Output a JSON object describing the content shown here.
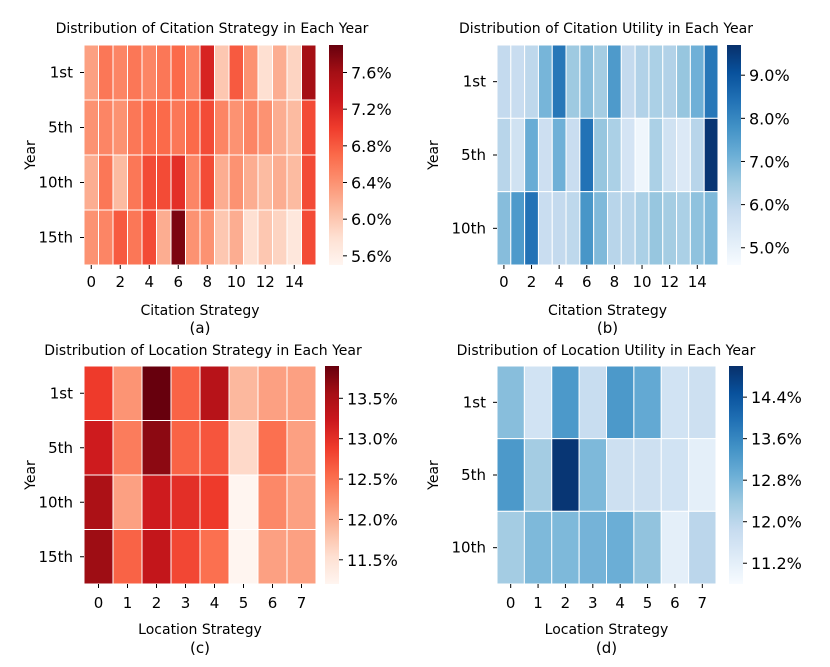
{
  "chart_data": [
    {
      "type": "heatmap",
      "title": "Distribution of Citation Strategy in Each Year",
      "xlabel": "Citation Strategy",
      "ylabel": "Year",
      "caption": "(a)",
      "colormap": "reds",
      "rows": [
        "1st",
        "5th",
        "10th",
        "15th"
      ],
      "x_tick_labels": [
        "0",
        "2",
        "4",
        "6",
        "8",
        "10",
        "12",
        "14"
      ],
      "vmin": 5.5,
      "vmax": 7.9,
      "colorbar_ticks": [
        {
          "value": 7.6,
          "label": "7.6%"
        },
        {
          "value": 7.2,
          "label": "7.2%"
        },
        {
          "value": 6.8,
          "label": "6.8%"
        },
        {
          "value": 6.4,
          "label": "6.4%"
        },
        {
          "value": 6.0,
          "label": "6.0%"
        },
        {
          "value": 5.6,
          "label": "5.6%"
        }
      ],
      "values": [
        [
          6.3,
          6.6,
          6.5,
          6.6,
          6.5,
          6.6,
          6.7,
          6.5,
          7.2,
          6.0,
          6.8,
          6.4,
          5.8,
          6.2,
          5.9,
          7.6
        ],
        [
          6.4,
          6.5,
          6.4,
          6.6,
          6.7,
          6.7,
          6.6,
          6.7,
          6.9,
          6.5,
          6.4,
          6.5,
          6.4,
          6.2,
          6.1,
          6.9
        ],
        [
          6.2,
          6.6,
          6.1,
          6.6,
          6.9,
          6.9,
          7.1,
          6.5,
          6.9,
          6.2,
          6.4,
          6.2,
          6.1,
          6.2,
          6.1,
          6.9
        ],
        [
          6.4,
          6.5,
          6.8,
          6.6,
          6.9,
          6.2,
          7.8,
          6.4,
          6.4,
          6.0,
          6.2,
          5.8,
          6.0,
          5.9,
          5.7,
          6.9
        ]
      ]
    },
    {
      "type": "heatmap",
      "title": "Distribution of Citation Utility in Each Year",
      "xlabel": "Citation Strategy",
      "ylabel": "Year",
      "caption": "(b)",
      "colormap": "blues",
      "rows": [
        "1st",
        "5th",
        "10th"
      ],
      "x_tick_labels": [
        "0",
        "2",
        "4",
        "6",
        "8",
        "10",
        "12",
        "14"
      ],
      "vmin": 4.6,
      "vmax": 9.7,
      "colorbar_ticks": [
        {
          "value": 9.0,
          "label": "9.0%"
        },
        {
          "value": 8.0,
          "label": "8.0%"
        },
        {
          "value": 7.0,
          "label": "7.0%"
        },
        {
          "value": 6.0,
          "label": "6.0%"
        },
        {
          "value": 5.0,
          "label": "5.0%"
        }
      ],
      "values": [
        [
          5.9,
          5.8,
          6.0,
          7.0,
          8.3,
          6.5,
          6.8,
          6.4,
          7.6,
          5.9,
          6.2,
          6.3,
          6.2,
          6.6,
          7.1,
          8.3
        ],
        [
          6.1,
          5.6,
          7.2,
          5.7,
          7.1,
          5.8,
          8.4,
          6.6,
          6.3,
          5.5,
          4.8,
          6.3,
          5.6,
          5.3,
          6.1,
          9.6
        ],
        [
          6.8,
          7.6,
          8.4,
          5.8,
          5.9,
          6.0,
          7.7,
          6.9,
          6.1,
          6.1,
          6.3,
          6.6,
          6.4,
          6.3,
          6.7,
          6.9
        ]
      ]
    },
    {
      "type": "heatmap",
      "title": "Distribution of Location Strategy in Each Year",
      "xlabel": "Location Strategy",
      "ylabel": "Year",
      "caption": "(c)",
      "colormap": "reds",
      "rows": [
        "1st",
        "5th",
        "10th",
        "15th"
      ],
      "x_tick_labels": [
        "0",
        "1",
        "2",
        "3",
        "4",
        "5",
        "6",
        "7"
      ],
      "vmin": 11.2,
      "vmax": 13.9,
      "colorbar_ticks": [
        {
          "value": 13.5,
          "label": "13.5%"
        },
        {
          "value": 13.0,
          "label": "13.0%"
        },
        {
          "value": 12.5,
          "label": "12.5%"
        },
        {
          "value": 12.0,
          "label": "12.0%"
        },
        {
          "value": 11.5,
          "label": "11.5%"
        }
      ],
      "values": [
        [
          12.9,
          12.2,
          13.9,
          12.6,
          13.4,
          11.9,
          12.1,
          12.1
        ],
        [
          13.2,
          12.4,
          13.7,
          12.6,
          12.7,
          11.6,
          12.5,
          12.1
        ],
        [
          13.5,
          12.1,
          13.2,
          13.0,
          12.9,
          11.2,
          12.3,
          12.1
        ],
        [
          13.6,
          12.6,
          13.3,
          12.8,
          12.5,
          11.2,
          12.1,
          12.1
        ]
      ]
    },
    {
      "type": "heatmap",
      "title": "Distribution of Location Utility in Each Year",
      "xlabel": "Location Strategy",
      "ylabel": "Year",
      "caption": "(d)",
      "colormap": "blues",
      "rows": [
        "1st",
        "5th",
        "10th"
      ],
      "x_tick_labels": [
        "0",
        "1",
        "2",
        "3",
        "4",
        "5",
        "6",
        "7"
      ],
      "vmin": 10.8,
      "vmax": 15.0,
      "colorbar_ticks": [
        {
          "value": 14.4,
          "label": "14.4%"
        },
        {
          "value": 13.6,
          "label": "13.6%"
        },
        {
          "value": 12.8,
          "label": "12.8%"
        },
        {
          "value": 12.0,
          "label": "12.0%"
        },
        {
          "value": 11.2,
          "label": "11.2%"
        }
      ],
      "values": [
        [
          12.6,
          11.6,
          13.3,
          11.8,
          13.3,
          13.0,
          11.6,
          11.7
        ],
        [
          13.3,
          12.3,
          14.9,
          12.7,
          11.7,
          11.7,
          11.6,
          11.2
        ],
        [
          12.3,
          12.7,
          12.7,
          12.8,
          12.9,
          12.5,
          11.2,
          12.0
        ]
      ]
    }
  ]
}
